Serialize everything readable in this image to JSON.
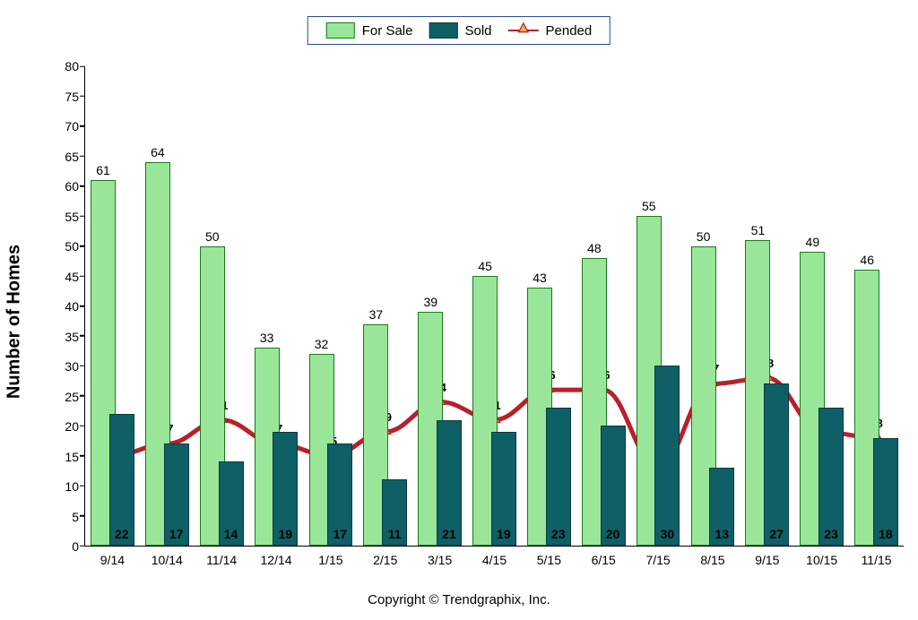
{
  "chart": {
    "type": "bar+line",
    "ylabel": "Number of Homes",
    "ylim": [
      0,
      80
    ],
    "ytick_step": 5,
    "background_color": "#ffffff",
    "axis_color": "#000000",
    "label_fontsize": 20,
    "tick_fontsize": 14,
    "categories": [
      "9/14",
      "10/14",
      "11/14",
      "12/14",
      "1/15",
      "2/15",
      "3/15",
      "4/15",
      "5/15",
      "6/15",
      "7/15",
      "8/15",
      "9/15",
      "10/15",
      "11/15"
    ],
    "series": {
      "for_sale": {
        "label": "For Sale",
        "color": "#99e699",
        "border_color": "#1a7a1a",
        "values": [
          61,
          64,
          50,
          33,
          32,
          37,
          39,
          45,
          43,
          48,
          55,
          50,
          51,
          49,
          46
        ]
      },
      "sold": {
        "label": "Sold",
        "color": "#0f5f66",
        "border_color": "#083a3e",
        "values": [
          22,
          17,
          14,
          19,
          17,
          11,
          21,
          19,
          23,
          20,
          30,
          13,
          27,
          23,
          18
        ]
      },
      "pended": {
        "label": "Pended",
        "line_color": "#b8202a",
        "marker_fill": "#f7b24a",
        "marker_stroke": "#b8202a",
        "marker_style": "triangle",
        "line_width": 2.5,
        "values": [
          15,
          17,
          21,
          17,
          15,
          19,
          24,
          21,
          26,
          26,
          13,
          27,
          28,
          19,
          18
        ]
      }
    },
    "bar_group_width_pct": 80,
    "bar_inner_width_pct": 46
  },
  "legend": {
    "border_color": "#2a4a9a",
    "items": [
      {
        "key": "for_sale"
      },
      {
        "key": "sold"
      },
      {
        "key": "pended"
      }
    ]
  },
  "footer": {
    "text": "Copyright © Trendgraphix, Inc."
  }
}
